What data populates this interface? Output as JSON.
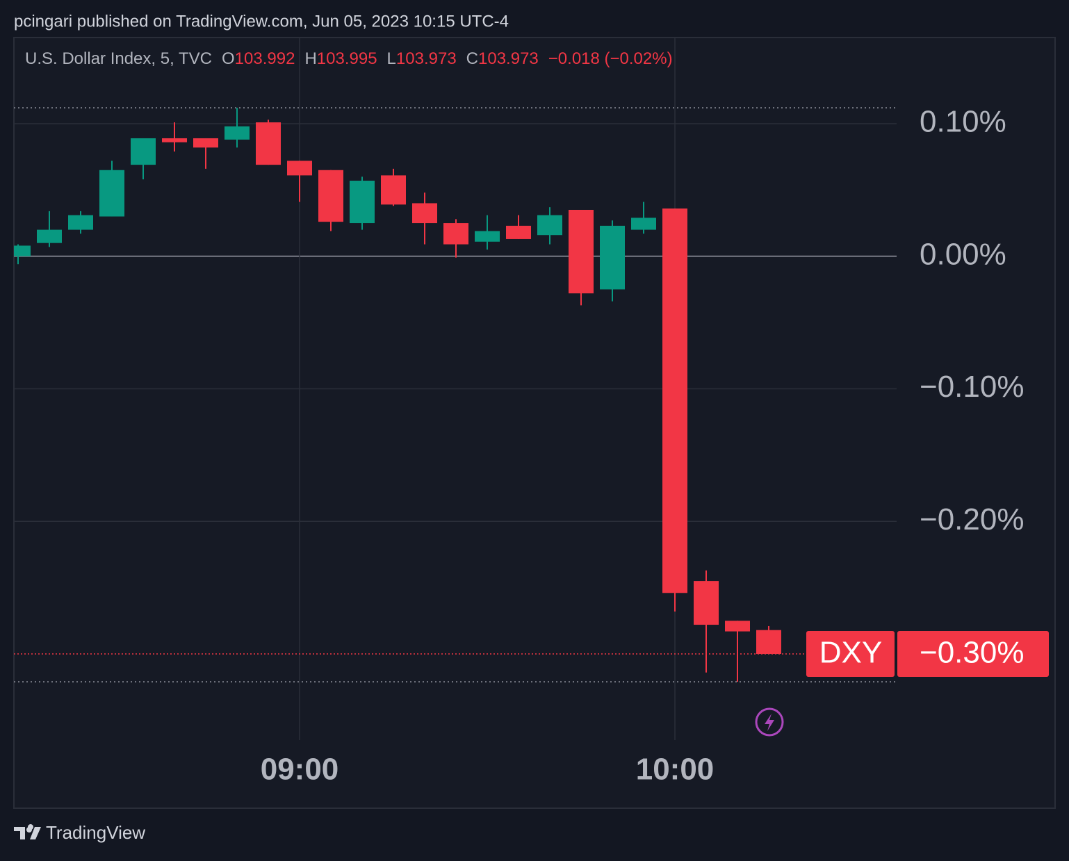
{
  "chart_data": {
    "type": "candlestick",
    "title": "pcingari published on TradingView.com, Jun 05, 2023 10:15 UTC-4",
    "legend": {
      "name": "U.S. Dollar Index, 5, TVC",
      "ohlc": [
        {
          "key": "O",
          "text": "103.992"
        },
        {
          "key": "H",
          "text": "103.995"
        },
        {
          "key": "L",
          "text": "103.973"
        },
        {
          "key": "C",
          "text": "103.973"
        }
      ],
      "change": "−0.018 (−0.02%)"
    },
    "categories": [
      null,
      null,
      null,
      null,
      null,
      null,
      null,
      null,
      null,
      "09:00",
      null,
      null,
      null,
      null,
      null,
      null,
      null,
      null,
      null,
      null,
      null,
      "10:00",
      null,
      null,
      null
    ],
    "series": [
      {
        "name": "open",
        "values": [
          0.0,
          0.01,
          0.02,
          0.03,
          0.069,
          0.089,
          0.089,
          0.088,
          0.101,
          0.072,
          0.065,
          0.025,
          0.061,
          0.04,
          0.025,
          0.011,
          0.023,
          0.016,
          0.035,
          -0.025,
          0.02,
          0.036,
          -0.245,
          -0.275,
          -0.282
        ]
      },
      {
        "name": "high",
        "values": [
          0.009,
          0.034,
          0.034,
          0.072,
          0.089,
          0.101,
          0.089,
          0.112,
          0.103,
          0.072,
          0.065,
          0.06,
          0.066,
          0.048,
          0.028,
          0.031,
          0.031,
          0.037,
          0.035,
          0.027,
          0.041,
          0.036,
          -0.237,
          -0.275,
          -0.279
        ]
      },
      {
        "name": "low",
        "values": [
          -0.006,
          0.007,
          0.017,
          0.03,
          0.058,
          0.079,
          0.066,
          0.082,
          0.069,
          0.041,
          0.019,
          0.02,
          0.038,
          0.009,
          -0.001,
          0.005,
          0.013,
          0.009,
          -0.037,
          -0.034,
          0.017,
          -0.268,
          -0.314,
          -0.321,
          -0.3
        ]
      },
      {
        "name": "close",
        "values": [
          0.008,
          0.02,
          0.031,
          0.065,
          0.089,
          0.086,
          0.082,
          0.098,
          0.069,
          0.061,
          0.026,
          0.057,
          0.039,
          0.025,
          0.009,
          0.019,
          0.013,
          0.031,
          -0.028,
          0.023,
          0.029,
          -0.254,
          -0.278,
          -0.283,
          -0.3
        ]
      }
    ],
    "up_color": "#089981",
    "down_color": "#f23645",
    "ylim": [
      0.165,
      -0.365
    ],
    "yticks": [
      {
        "value": 0.1,
        "label": "0.10%"
      },
      {
        "value": 0,
        "label": "0.00%"
      },
      {
        "value": -0.1,
        "label": "−0.10%"
      },
      {
        "value": -0.2,
        "label": "−0.20%"
      }
    ],
    "grid": true,
    "last_label": {
      "symbol": "DXY",
      "value": -0.3,
      "label": "−0.30%"
    }
  },
  "footer": "TradingView"
}
